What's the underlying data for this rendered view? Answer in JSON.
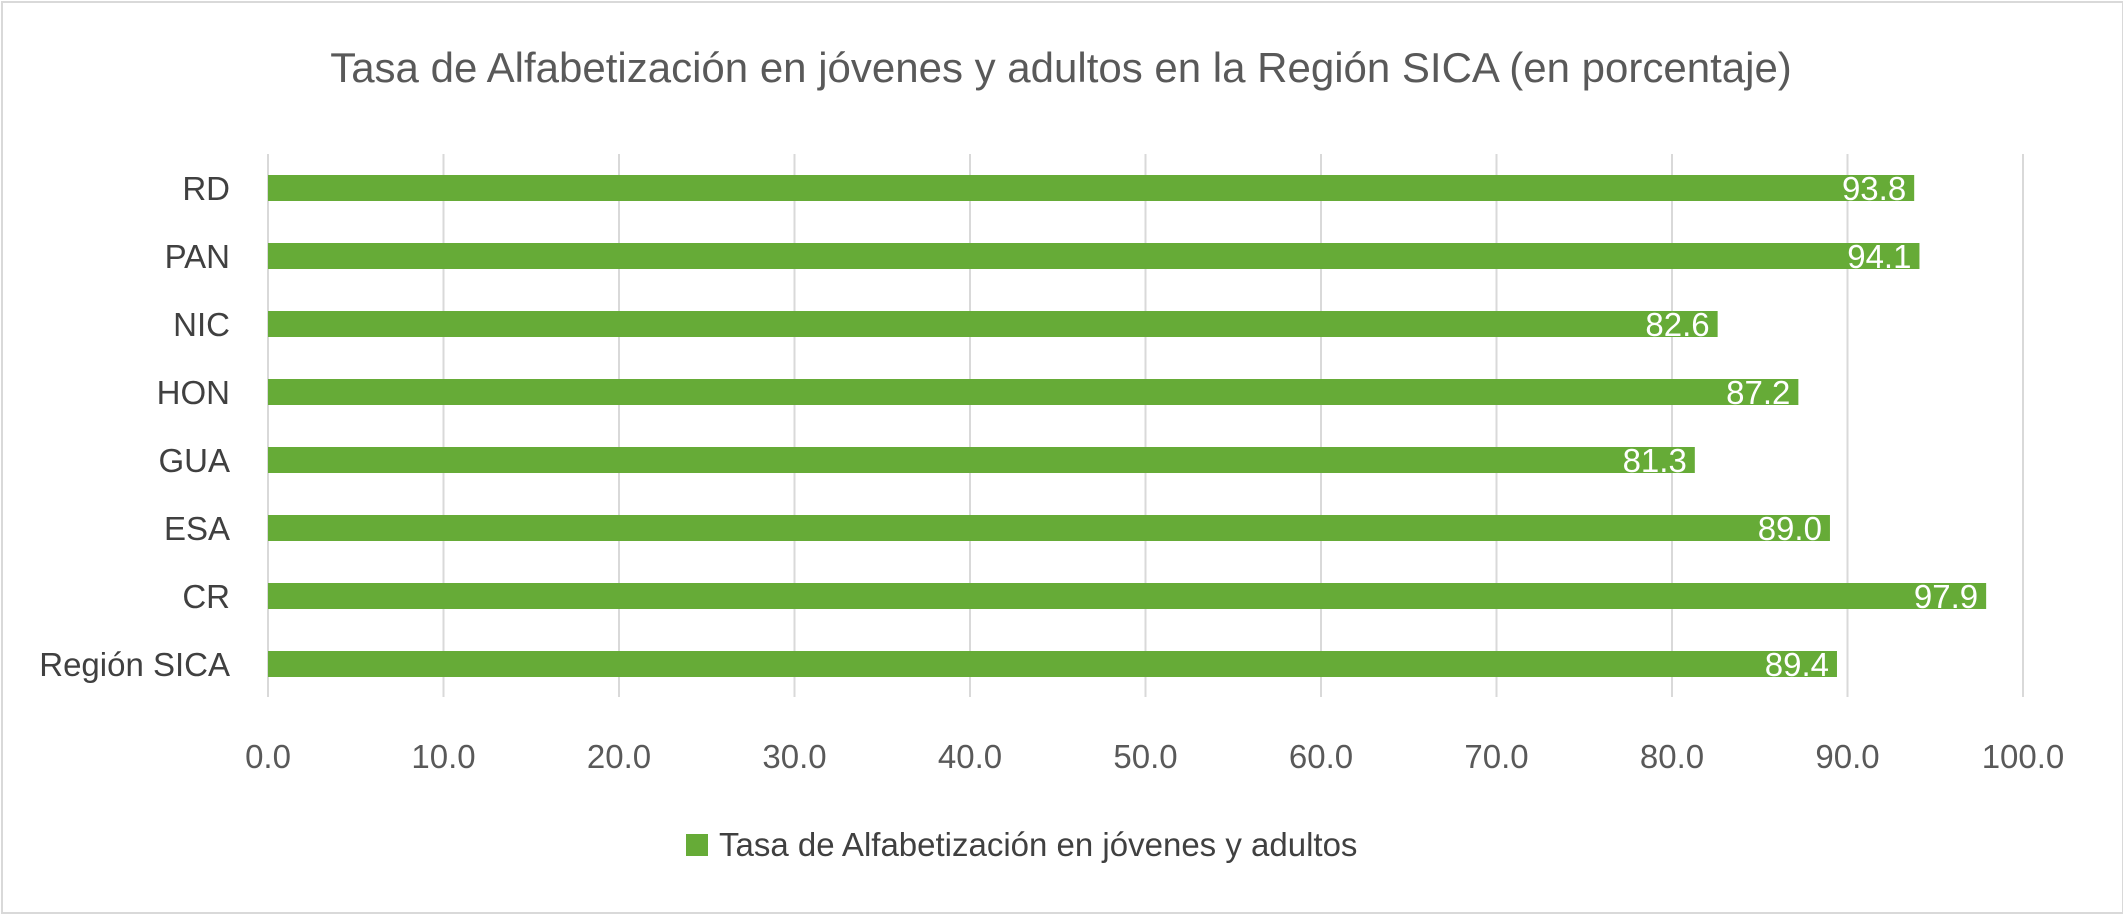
{
  "chart_data": {
    "type": "bar",
    "orientation": "horizontal",
    "title": "Tasa de Alfabetización en jóvenes y adultos en la Región SICA (en porcentaje)",
    "categories": [
      "RD",
      "PAN",
      "NIC",
      "HON",
      "GUA",
      "ESA",
      "CR",
      "Región SICA"
    ],
    "series": [
      {
        "name": "Tasa de Alfabetización en jóvenes y adultos",
        "color": "#66ab37",
        "values": [
          93.8,
          94.1,
          82.6,
          87.2,
          81.3,
          89.0,
          97.9,
          89.4
        ],
        "labels": [
          "93.8",
          "94.1",
          "82.6",
          "87.2",
          "81.3",
          "89.0",
          "97.9",
          "89.4"
        ]
      }
    ],
    "xlim": [
      0,
      100
    ],
    "xticks": [
      0,
      10,
      20,
      30,
      40,
      50,
      60,
      70,
      80,
      90,
      100
    ],
    "xtick_labels": [
      "0.0",
      "10.0",
      "20.0",
      "30.0",
      "40.0",
      "50.0",
      "60.0",
      "70.0",
      "80.0",
      "90.0",
      "100.0"
    ],
    "xlabel": "",
    "ylabel": "",
    "grid": true,
    "legend_position": "bottom",
    "colors": {
      "bar": "#66ab37",
      "grid": "#d9d9d9",
      "title": "#595959",
      "text": "#404040",
      "data_label": "#ffffff"
    }
  }
}
